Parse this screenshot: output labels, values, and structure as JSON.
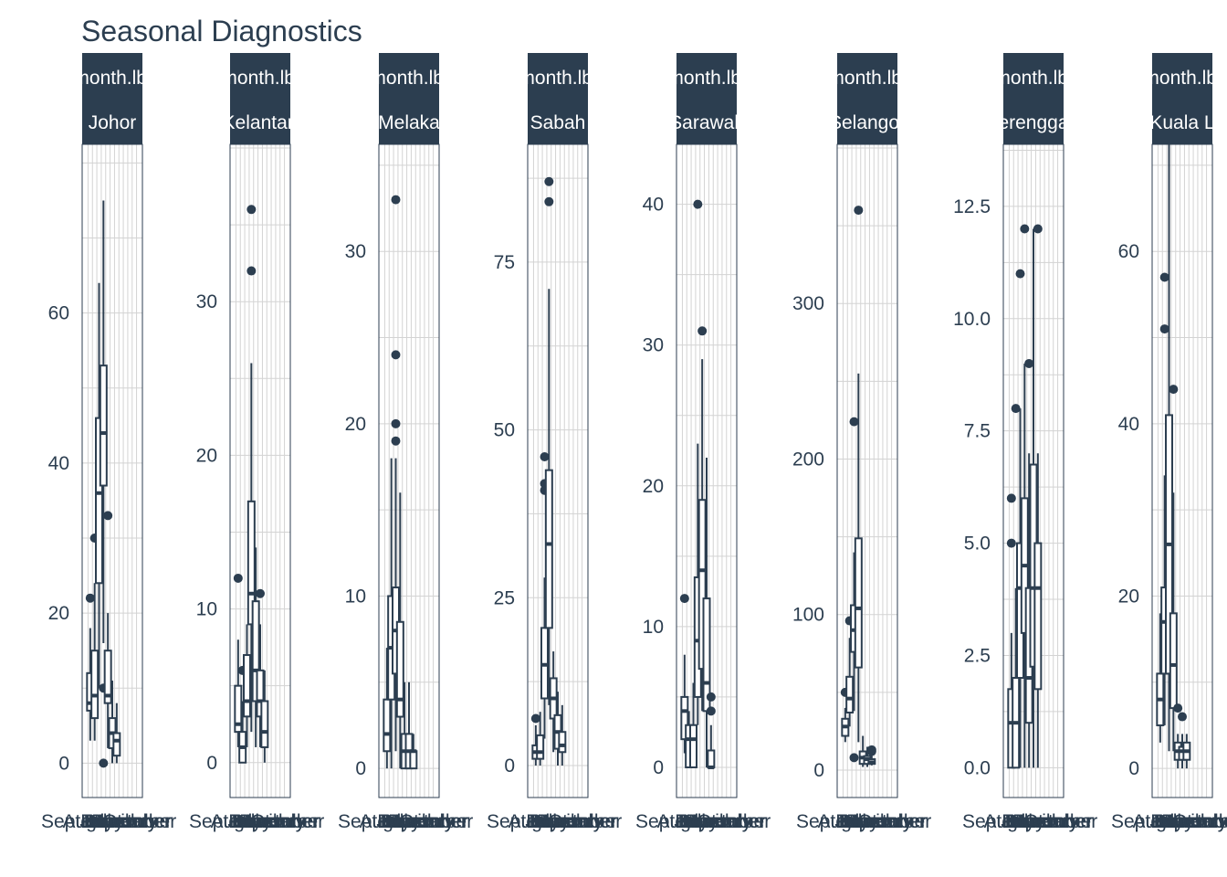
{
  "chart_data": {
    "type": "boxplot",
    "title": "Seasonal Diagnostics",
    "facet_strip_label": "month.lbl",
    "x_categories": [
      "September",
      "August",
      "July",
      "June",
      "May",
      "April",
      "March",
      "February",
      "January",
      "December",
      "November",
      "October"
    ],
    "colors": {
      "strip_fill": "#2c3e50",
      "box_stroke": "#2c3e50",
      "text": "#2c3e50",
      "grid": "#d3d3d3",
      "border": "#2c3e50"
    },
    "facets": [
      {
        "state": "Johor",
        "strip_visible": "Johor",
        "ylim": [
          -3,
          82
        ],
        "yticks": [
          0,
          20,
          40,
          60
        ],
        "boxes": [
          {
            "min": 3,
            "q1": 7,
            "median": 8,
            "q3": 12,
            "max": 18,
            "outliers": [
              22
            ]
          },
          {
            "min": 3,
            "q1": 6,
            "median": 9,
            "q3": 15,
            "max": 24,
            "outliers": [
              30
            ]
          },
          {
            "min": 10,
            "q1": 24,
            "median": 36,
            "q3": 46,
            "max": 64,
            "outliers": []
          },
          {
            "min": 16,
            "q1": 37,
            "median": 44,
            "q3": 53,
            "max": 75,
            "outliers": [
              10,
              0
            ]
          },
          {
            "min": 2,
            "q1": 8,
            "median": 9,
            "q3": 15,
            "max": 20,
            "outliers": [
              33
            ]
          },
          {
            "min": 0,
            "q1": 2,
            "median": 4,
            "q3": 6,
            "max": 11,
            "outliers": []
          },
          {
            "min": 0,
            "q1": 1,
            "median": 3,
            "q3": 4,
            "max": 8,
            "outliers": []
          }
        ]
      },
      {
        "state": "Kelantan",
        "strip_visible": "Kelantan",
        "ylim": [
          -1.5,
          40
        ],
        "yticks": [
          0,
          10,
          20,
          30
        ],
        "boxes": [
          {
            "min": 1,
            "q1": 2,
            "median": 2.5,
            "q3": 5,
            "max": 8,
            "outliers": [
              12
            ]
          },
          {
            "min": 0,
            "q1": 0,
            "median": 1,
            "q3": 2,
            "max": 4,
            "outliers": [
              6
            ]
          },
          {
            "min": 1,
            "q1": 3,
            "median": 4,
            "q3": 7,
            "max": 9,
            "outliers": []
          },
          {
            "min": 2,
            "q1": 9,
            "median": 11,
            "q3": 17,
            "max": 26,
            "outliers": [
              36,
              32
            ]
          },
          {
            "min": 1,
            "q1": 4,
            "median": 6,
            "q3": 10.5,
            "max": 14,
            "outliers": []
          },
          {
            "min": 1,
            "q1": 3,
            "median": 4,
            "q3": 6,
            "max": 9,
            "outliers": [
              11
            ]
          },
          {
            "min": 0,
            "q1": 1,
            "median": 2,
            "q3": 4,
            "max": 6,
            "outliers": []
          }
        ]
      },
      {
        "state": "Melaka",
        "strip_visible": "Melaka",
        "ylim": [
          -1,
          36
        ],
        "yticks": [
          0,
          10,
          20,
          30
        ],
        "boxes": [
          {
            "min": 0,
            "q1": 1,
            "median": 2,
            "q3": 4,
            "max": 7,
            "outliers": []
          },
          {
            "min": 0,
            "q1": 4,
            "median": 7,
            "q3": 10,
            "max": 18,
            "outliers": []
          },
          {
            "min": 1,
            "q1": 5.5,
            "median": 8,
            "q3": 10.5,
            "max": 18,
            "outliers": [
              33,
              24,
              20,
              19
            ]
          },
          {
            "min": 0,
            "q1": 3,
            "median": 4,
            "q3": 8.5,
            "max": 16,
            "outliers": []
          },
          {
            "min": 0,
            "q1": 0,
            "median": 1,
            "q3": 2,
            "max": 5,
            "outliers": []
          },
          {
            "min": 0,
            "q1": 0,
            "median": 1,
            "q3": 2,
            "max": 5,
            "outliers": []
          },
          {
            "min": 0,
            "q1": 0,
            "median": 1,
            "q3": 1,
            "max": 2,
            "outliers": []
          }
        ]
      },
      {
        "state": "Sabah",
        "strip_visible": "Sabah",
        "ylim": [
          -3,
          92
        ],
        "yticks": [
          0,
          25,
          50,
          75
        ],
        "boxes": [
          {
            "min": 0,
            "q1": 1,
            "median": 2,
            "q3": 3,
            "max": 6,
            "outliers": [
              7
            ]
          },
          {
            "min": 0,
            "q1": 1,
            "median": 2,
            "q3": 4.5,
            "max": 8,
            "outliers": []
          },
          {
            "min": 4,
            "q1": 10,
            "median": 15,
            "q3": 20.5,
            "max": 28,
            "outliers": [
              46,
              42,
              41
            ]
          },
          {
            "min": 9,
            "q1": 20.5,
            "median": 33,
            "q3": 44,
            "max": 71,
            "outliers": [
              87,
              84
            ]
          },
          {
            "min": 2,
            "q1": 7,
            "median": 10,
            "q3": 13,
            "max": 17,
            "outliers": []
          },
          {
            "min": 0,
            "q1": 2.5,
            "median": 5,
            "q3": 7.5,
            "max": 11,
            "outliers": []
          },
          {
            "min": 0,
            "q1": 2,
            "median": 3,
            "q3": 5,
            "max": 9,
            "outliers": []
          }
        ]
      },
      {
        "state": "Sarawak",
        "strip_visible": "Sarawak",
        "ylim": [
          -1.3,
          44
        ],
        "yticks": [
          0,
          10,
          20,
          30,
          40
        ],
        "boxes": [
          {
            "min": 1,
            "q1": 2,
            "median": 4,
            "q3": 5,
            "max": 8,
            "outliers": [
              12
            ]
          },
          {
            "min": 0,
            "q1": 0,
            "median": 2,
            "q3": 3,
            "max": 4,
            "outliers": []
          },
          {
            "min": 0,
            "q1": 0,
            "median": 2,
            "q3": 3,
            "max": 6,
            "outliers": []
          },
          {
            "min": 3,
            "q1": 5,
            "median": 9,
            "q3": 13.5,
            "max": 23,
            "outliers": [
              40
            ]
          },
          {
            "min": 4,
            "q1": 7,
            "median": 14,
            "q3": 19,
            "max": 29,
            "outliers": [
              31
            ]
          },
          {
            "min": 0,
            "q1": 4,
            "median": 6,
            "q3": 12,
            "max": 22,
            "outliers": []
          },
          {
            "min": 0,
            "q1": 0,
            "median": 0,
            "q3": 1.2,
            "max": 3,
            "outliers": [
              5,
              4
            ]
          }
        ]
      },
      {
        "state": "Selangor",
        "strip_visible": "Selangor",
        "ylim": [
          -10,
          400
        ],
        "yticks": [
          0,
          100,
          200,
          300
        ],
        "boxes": [
          {
            "min": 18,
            "q1": 22,
            "median": 28,
            "q3": 33,
            "max": 40,
            "outliers": [
              50
            ]
          },
          {
            "min": 28,
            "q1": 37,
            "median": 46,
            "q3": 60,
            "max": 85,
            "outliers": [
              96
            ]
          },
          {
            "min": 38,
            "q1": 76,
            "median": 90,
            "q3": 106,
            "max": 140,
            "outliers": [
              224,
              8
            ]
          },
          {
            "min": 18,
            "q1": 66,
            "median": 104,
            "q3": 149,
            "max": 255,
            "outliers": [
              360
            ]
          },
          {
            "min": 2,
            "q1": 4,
            "median": 8,
            "q3": 12,
            "max": 22,
            "outliers": []
          },
          {
            "min": 2,
            "q1": 4,
            "median": 7,
            "q3": 9,
            "max": 15,
            "outliers": []
          },
          {
            "min": 3,
            "q1": 4,
            "median": 5,
            "q3": 7,
            "max": 10,
            "outliers": [
              13,
              12
            ]
          }
        ]
      },
      {
        "state": "Terengganu",
        "strip_visible": "erengga",
        "ylim": [
          -0.4,
          13.8
        ],
        "yticks": [
          0.0,
          2.5,
          5.0,
          7.5,
          10.0,
          12.5
        ],
        "tick_labels": [
          "0.0",
          "2.5",
          "5.0",
          "7.5",
          "10.0",
          "12.5"
        ],
        "boxes": [
          {
            "min": 0,
            "q1": 0,
            "median": 1,
            "q3": 1.75,
            "max": 3,
            "outliers": [
              6,
              5
            ]
          },
          {
            "min": 0,
            "q1": 0,
            "median": 1,
            "q3": 2,
            "max": 4,
            "outliers": [
              8
            ]
          },
          {
            "min": 0,
            "q1": 2,
            "median": 4,
            "q3": 5,
            "max": 8,
            "outliers": [
              11
            ]
          },
          {
            "min": 0,
            "q1": 3,
            "median": 4.5,
            "q3": 6,
            "max": 9,
            "outliers": [
              12
            ]
          },
          {
            "min": 0,
            "q1": 1,
            "median": 2,
            "q3": 4,
            "max": 7,
            "outliers": [
              9
            ]
          },
          {
            "min": 0,
            "q1": 2.25,
            "median": 4,
            "q3": 6.75,
            "max": 12,
            "outliers": []
          },
          {
            "min": 0,
            "q1": 1.75,
            "median": 4,
            "q3": 5,
            "max": 7,
            "outliers": [
              12
            ]
          }
        ]
      },
      {
        "state": "Kuala Lumpur",
        "strip_visible": "Kuala L",
        "ylim": [
          -2,
          72
        ],
        "yticks": [
          0,
          20,
          40,
          60
        ],
        "boxes": [
          {
            "min": 3,
            "q1": 5,
            "median": 8,
            "q3": 11,
            "max": 18,
            "outliers": []
          },
          {
            "min": 5,
            "q1": 11,
            "median": 17,
            "q3": 21,
            "max": 34,
            "outliers": [
              57,
              51
            ]
          },
          {
            "min": 2,
            "q1": 11,
            "median": 26,
            "q3": 41,
            "max": 74,
            "outliers": []
          },
          {
            "min": 2,
            "q1": 7,
            "median": 12,
            "q3": 18,
            "max": 32,
            "outliers": [
              44
            ]
          },
          {
            "min": 0,
            "q1": 1,
            "median": 2,
            "q3": 3,
            "max": 4,
            "outliers": [
              7
            ]
          },
          {
            "min": 0,
            "q1": 1,
            "median": 2,
            "q3": 2.5,
            "max": 4,
            "outliers": [
              6
            ]
          },
          {
            "min": 0,
            "q1": 1,
            "median": 2,
            "q3": 3,
            "max": 4,
            "outliers": []
          }
        ]
      }
    ]
  }
}
